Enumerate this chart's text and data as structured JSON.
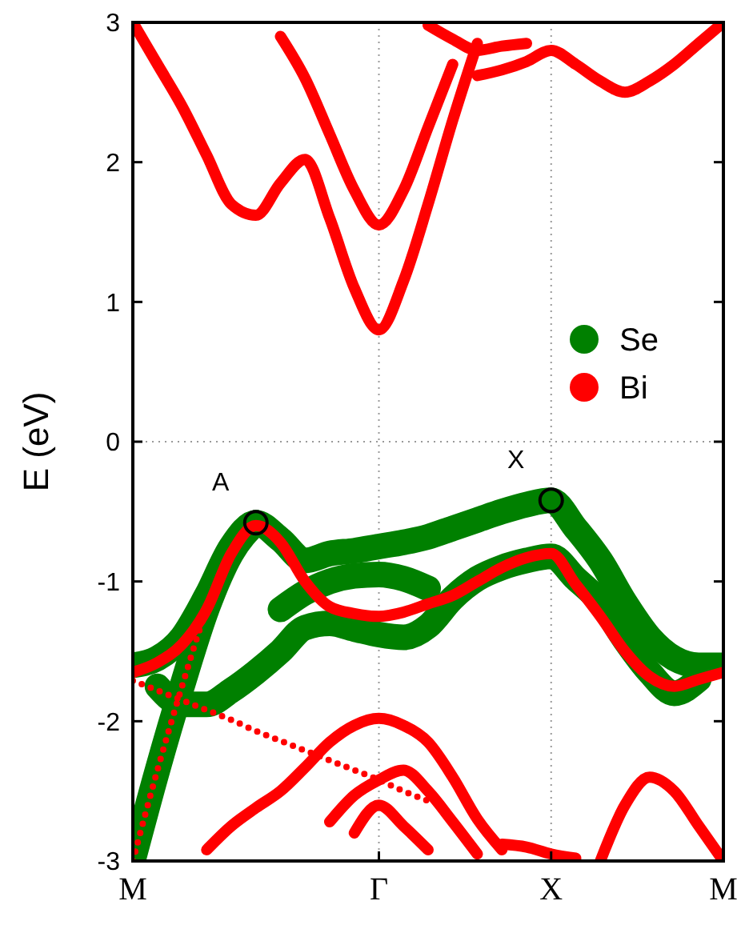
{
  "chart_data": {
    "type": "line",
    "ylabel": "E (eV)",
    "categories": [
      "M",
      null,
      null,
      null,
      null,
      null,
      null,
      null,
      null,
      null,
      "Γ",
      null,
      null,
      null,
      null,
      null,
      null,
      "X",
      null,
      null,
      null,
      null,
      null,
      null,
      "M"
    ],
    "ylim": [
      -3,
      3
    ],
    "yticks": [
      -3,
      -2,
      -1,
      0,
      1,
      2,
      3
    ],
    "legend": "right",
    "marker": "none",
    "line_style": "solid",
    "ref_lines": [
      {
        "axis": "x",
        "value": "Γ",
        "line_style": "dotted",
        "color": "#999999"
      },
      {
        "axis": "x",
        "value": "X",
        "line_style": "dotted",
        "color": "#999999"
      },
      {
        "axis": "y",
        "value": 0,
        "line_style": "dotted",
        "color": "#999999"
      }
    ],
    "annotations": [
      "A",
      "X"
    ],
    "series": [
      {
        "name": "Se",
        "color": "#008000",
        "values": [
          -1.6,
          -1.55,
          -1.4,
          -1.1,
          -0.75,
          -0.58,
          -0.7,
          -0.85,
          -0.8,
          -0.78,
          -0.75,
          -0.72,
          -0.68,
          -0.62,
          -0.56,
          -0.5,
          -0.45,
          -0.42,
          -0.62,
          -0.85,
          -1.15,
          -1.4,
          -1.55,
          -1.6,
          -1.6
        ]
      },
      {
        "color": "#008000",
        "values": [
          null,
          -1.75,
          -1.88,
          -1.88,
          -1.78,
          -1.65,
          -1.5,
          -1.33,
          -1.3,
          -1.34,
          -1.38,
          -1.4,
          -1.32,
          -1.12,
          -0.98,
          -0.9,
          -0.85,
          -0.82,
          -0.98,
          -1.15,
          -1.42,
          -1.65,
          -1.8,
          -1.7,
          null
        ]
      },
      {
        "color": "#008000",
        "values": [
          null,
          null,
          null,
          null,
          null,
          null,
          -1.2,
          -1.08,
          -1.0,
          -0.96,
          -0.95,
          -0.98,
          -1.05,
          null,
          null,
          null,
          null,
          null,
          null,
          null,
          null,
          null,
          null,
          null,
          null
        ]
      },
      {
        "color": "#008000",
        "values": [
          -3,
          -2.35,
          -1.75,
          -1.2,
          -0.8,
          -0.58,
          null,
          null,
          null,
          null,
          null,
          null,
          null,
          null,
          null,
          null,
          null,
          null,
          null,
          null,
          null,
          null,
          null,
          null,
          null
        ]
      },
      {
        "name": "Bi",
        "color": "#ff0000",
        "values": [
          3,
          2.7,
          2.4,
          2.05,
          1.7,
          1.62,
          1.85,
          2.02,
          1.6,
          1.1,
          0.8,
          1.15,
          1.7,
          2.3,
          2.85,
          null,
          null,
          null,
          null,
          null,
          null,
          null,
          null,
          null,
          null
        ]
      },
      {
        "color": "#ff0000",
        "values": [
          null,
          null,
          null,
          null,
          null,
          null,
          2.9,
          2.6,
          2.2,
          1.8,
          1.55,
          1.8,
          2.25,
          2.7,
          null,
          null,
          null,
          null,
          null,
          null,
          null,
          null,
          null,
          null,
          null
        ]
      },
      {
        "color": "#ff0000",
        "values": [
          null,
          null,
          null,
          null,
          null,
          null,
          null,
          null,
          null,
          null,
          null,
          null,
          null,
          null,
          2.62,
          2.66,
          2.72,
          2.8,
          2.7,
          2.58,
          2.5,
          2.58,
          2.7,
          2.85,
          3
        ]
      },
      {
        "color": "#ff0000",
        "values": [
          null,
          null,
          null,
          null,
          null,
          null,
          null,
          null,
          null,
          null,
          null,
          null,
          2.98,
          2.88,
          2.8,
          2.83,
          2.85,
          null,
          null,
          null,
          null,
          null,
          null,
          null,
          null
        ]
      },
      {
        "color": "#ff0000",
        "values": [
          -1.65,
          -1.58,
          -1.45,
          -1.2,
          -0.8,
          -0.6,
          -0.72,
          -1.0,
          -1.18,
          -1.23,
          -1.25,
          -1.22,
          -1.16,
          -1.1,
          -1.0,
          -0.9,
          -0.83,
          -0.8,
          -1.02,
          -1.25,
          -1.5,
          -1.68,
          -1.75,
          -1.7,
          -1.65
        ]
      },
      {
        "color": "#ff0000",
        "line_style": "dotted",
        "values": [
          -3,
          -2.35,
          -1.75,
          -1.2,
          -0.8,
          -0.58,
          null,
          null,
          null,
          null,
          null,
          null,
          null,
          null,
          null,
          null,
          null,
          null,
          null,
          null,
          null,
          null,
          null,
          null,
          null
        ]
      },
      {
        "color": "#ff0000",
        "line_style": "dotted",
        "values": [
          -1.71,
          -1.78,
          -1.85,
          -1.92,
          -1.99,
          -2.07,
          -2.14,
          -2.21,
          -2.28,
          -2.35,
          -2.42,
          -2.5,
          -2.57,
          null,
          null,
          null,
          null,
          null,
          null,
          null,
          null,
          null,
          null,
          null,
          null
        ]
      },
      {
        "color": "#ff0000",
        "values": [
          null,
          null,
          null,
          -2.92,
          -2.75,
          -2.62,
          -2.5,
          -2.33,
          -2.15,
          -2.03,
          -1.98,
          -2.03,
          -2.15,
          -2.4,
          -2.7,
          -2.92,
          null,
          null,
          null,
          null,
          null,
          null,
          null,
          null,
          null
        ]
      },
      {
        "color": "#ff0000",
        "values": [
          null,
          null,
          null,
          null,
          null,
          null,
          null,
          null,
          -2.72,
          -2.53,
          -2.42,
          -2.35,
          -2.5,
          -2.72,
          -2.95,
          null,
          null,
          null,
          null,
          null,
          null,
          null,
          null,
          null,
          null
        ]
      },
      {
        "color": "#ff0000",
        "values": [
          null,
          null,
          null,
          null,
          null,
          null,
          null,
          null,
          null,
          -2.8,
          -2.6,
          -2.75,
          -2.92,
          null,
          null,
          null,
          null,
          null,
          null,
          null,
          null,
          null,
          null,
          null,
          null
        ]
      },
      {
        "color": "#ff0000",
        "values": [
          null,
          null,
          null,
          null,
          null,
          null,
          null,
          null,
          null,
          null,
          null,
          null,
          null,
          null,
          null,
          -2.88,
          -2.9,
          -2.95,
          -2.98,
          null,
          null,
          null,
          null,
          null,
          null
        ]
      },
      {
        "color": "#ff0000",
        "values": [
          null,
          null,
          null,
          null,
          null,
          null,
          null,
          null,
          null,
          null,
          null,
          null,
          null,
          null,
          null,
          null,
          null,
          null,
          null,
          -3,
          -2.6,
          -2.4,
          -2.5,
          -2.75,
          -3
        ]
      }
    ]
  }
}
